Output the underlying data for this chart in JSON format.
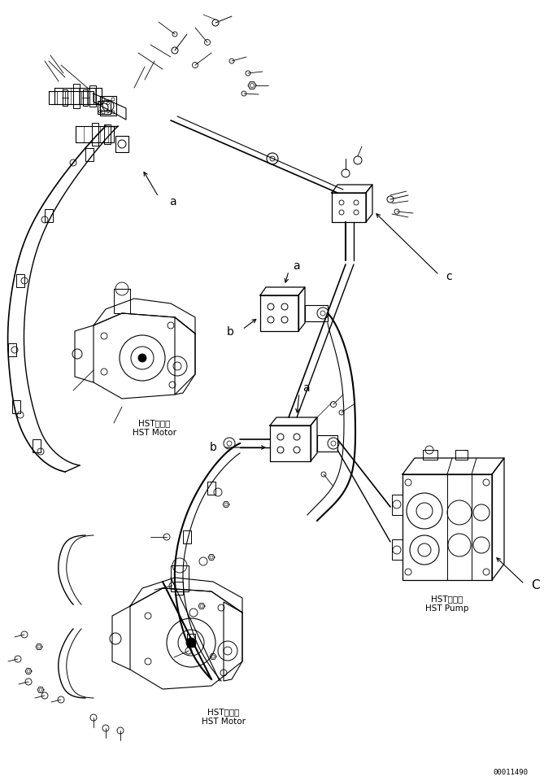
{
  "bg_color": "#ffffff",
  "line_color": "#000000",
  "fig_width": 6.85,
  "fig_height": 9.6,
  "dpi": 100,
  "part_number": "00011490",
  "labels": {
    "hst_motor_top_jp": "HSTモータ",
    "hst_motor_top_en": "HST Motor",
    "hst_motor_bot_jp": "HSTモータ",
    "hst_motor_bot_en": "HST Motor",
    "hst_pump_jp": "HSTポンプ",
    "hst_pump_en": "HST Pump"
  }
}
